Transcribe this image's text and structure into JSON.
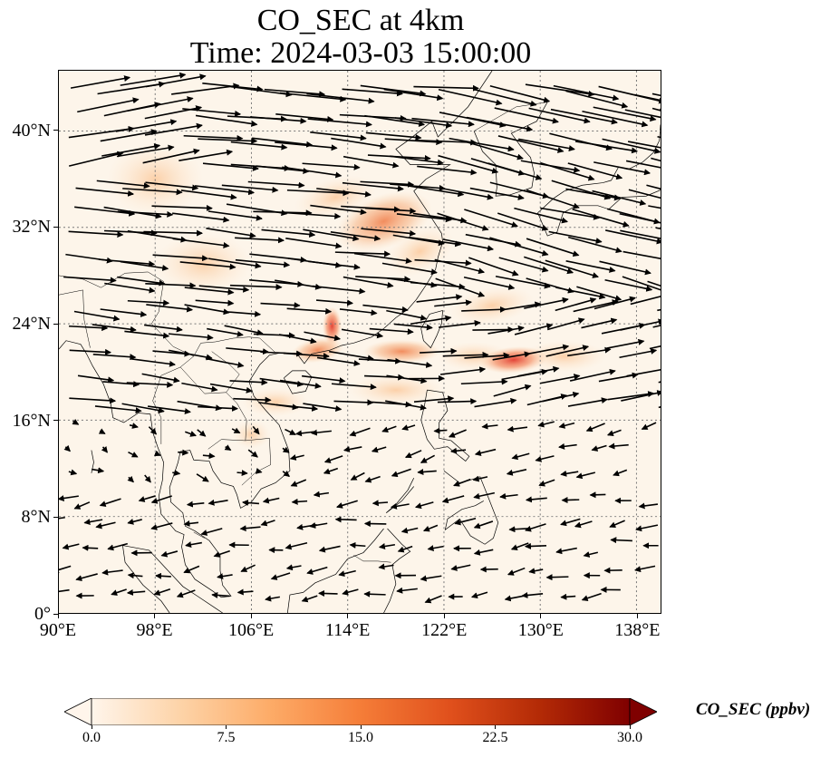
{
  "title_line1": "CO_SEC at 4km",
  "title_line2": "Time: 2024-03-03 15:00:00",
  "map": {
    "lon_range": [
      90,
      140
    ],
    "lat_range": [
      0,
      45
    ],
    "lat_ticks": [
      {
        "value": 40,
        "label": "40°N"
      },
      {
        "value": 32,
        "label": "32°N"
      },
      {
        "value": 24,
        "label": "24°N"
      },
      {
        "value": 16,
        "label": "16°N"
      },
      {
        "value": 8,
        "label": "8°N"
      },
      {
        "value": 0,
        "label": "0°"
      }
    ],
    "lon_ticks": [
      {
        "value": 90,
        "label": "90°E"
      },
      {
        "value": 98,
        "label": "98°E"
      },
      {
        "value": 106,
        "label": "106°E"
      },
      {
        "value": 114,
        "label": "114°E"
      },
      {
        "value": 122,
        "label": "122°E"
      },
      {
        "value": 130,
        "label": "130°E"
      },
      {
        "value": 138,
        "label": "138°E"
      }
    ],
    "gridlines": true,
    "plume_color": "#f08a50",
    "plume_core_color": "#e64a36",
    "arrow_color": "#000000",
    "background_color": "#fdf5ea"
  },
  "colorbar": {
    "label": "CO_SEC (ppbv)",
    "min": 0,
    "max": 30,
    "ticks": [
      "0.0",
      "7.5",
      "15.0",
      "22.5",
      "30.0"
    ],
    "colors": [
      "#fff5eb",
      "#fdd3a7",
      "#fdab67",
      "#f57d38",
      "#e0501c",
      "#b32a06",
      "#7f0000"
    ],
    "extend": "both"
  }
}
